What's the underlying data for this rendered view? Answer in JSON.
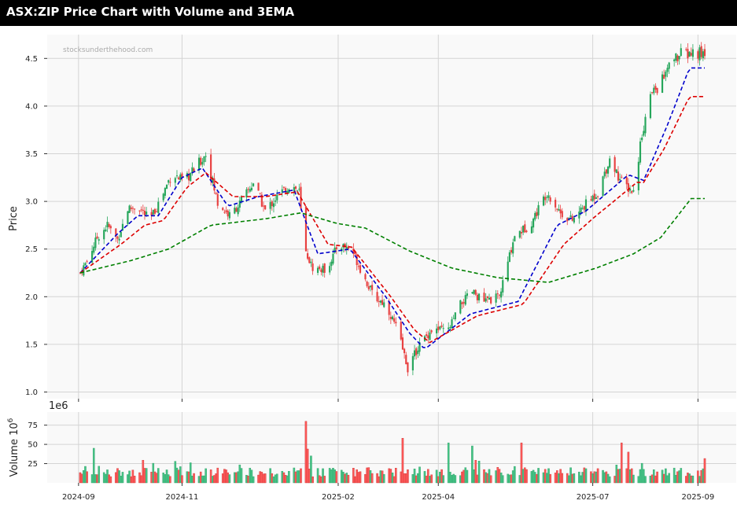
{
  "header": {
    "title": "ASX:ZIP Price Chart with Volume and 3EMA"
  },
  "watermark": "stocksunderthehood.com",
  "chart_data": [
    {
      "type": "candlestick",
      "ylabel": "Price",
      "ylim": [
        0.93,
        4.75
      ],
      "yticks": [
        1.0,
        1.5,
        2.0,
        2.5,
        3.0,
        3.5,
        4.0,
        4.5
      ],
      "ytick_labels": [
        "1.0",
        "1.5",
        "2.0",
        "2.5",
        "3.0",
        "3.5",
        "4.0",
        "4.5"
      ],
      "grid": true,
      "up_color": "#26a65b",
      "down_color": "#e84040",
      "ema_colors": [
        "#0000cc",
        "#dd0000",
        "#008000"
      ],
      "price_keypoints": [
        [
          "2024-09-02",
          2.25
        ],
        [
          "2024-09-06",
          2.38
        ],
        [
          "2024-09-12",
          2.62
        ],
        [
          "2024-09-18",
          2.75
        ],
        [
          "2024-09-24",
          2.6
        ],
        [
          "2024-09-30",
          2.92
        ],
        [
          "2024-10-06",
          2.95
        ],
        [
          "2024-10-13",
          2.8
        ],
        [
          "2024-10-20",
          3.05
        ],
        [
          "2024-10-26",
          3.3
        ],
        [
          "2024-11-02",
          3.2
        ],
        [
          "2024-11-09",
          3.35
        ],
        [
          "2024-11-15",
          3.5
        ],
        [
          "2024-11-22",
          2.98
        ],
        [
          "2024-11-29",
          2.85
        ],
        [
          "2024-12-06",
          3.0
        ],
        [
          "2024-12-13",
          3.2
        ],
        [
          "2024-12-20",
          2.9
        ],
        [
          "2024-12-27",
          3.05
        ],
        [
          "2025-01-04",
          3.18
        ],
        [
          "2025-01-09",
          3.1
        ],
        [
          "2025-01-12",
          2.5
        ],
        [
          "2025-01-17",
          2.3
        ],
        [
          "2025-01-25",
          2.28
        ],
        [
          "2025-02-01",
          2.55
        ],
        [
          "2025-02-09",
          2.5
        ],
        [
          "2025-02-15",
          2.25
        ],
        [
          "2025-02-22",
          2.0
        ],
        [
          "2025-03-01",
          1.92
        ],
        [
          "2025-03-08",
          1.65
        ],
        [
          "2025-03-14",
          1.25
        ],
        [
          "2025-03-21",
          1.5
        ],
        [
          "2025-03-28",
          1.65
        ],
        [
          "2025-04-07",
          1.65
        ],
        [
          "2025-04-14",
          1.92
        ],
        [
          "2025-04-21",
          2.05
        ],
        [
          "2025-04-28",
          1.95
        ],
        [
          "2025-05-07",
          2.0
        ],
        [
          "2025-05-16",
          2.65
        ],
        [
          "2025-05-25",
          2.75
        ],
        [
          "2025-06-04",
          3.1
        ],
        [
          "2025-06-12",
          2.88
        ],
        [
          "2025-06-19",
          2.8
        ],
        [
          "2025-06-26",
          2.95
        ],
        [
          "2025-07-04",
          3.1
        ],
        [
          "2025-07-11",
          3.45
        ],
        [
          "2025-07-18",
          3.2
        ],
        [
          "2025-07-25",
          3.1
        ],
        [
          "2025-07-30",
          3.72
        ],
        [
          "2025-08-04",
          4.1
        ],
        [
          "2025-08-12",
          4.3
        ],
        [
          "2025-08-18",
          4.5
        ],
        [
          "2025-08-25",
          4.55
        ]
      ],
      "ema_short": [
        [
          "2024-09-02",
          2.25
        ],
        [
          "2024-09-24",
          2.66
        ],
        [
          "2024-10-06",
          2.85
        ],
        [
          "2024-10-18",
          2.85
        ],
        [
          "2024-11-01",
          3.25
        ],
        [
          "2024-11-13",
          3.35
        ],
        [
          "2024-11-28",
          2.95
        ],
        [
          "2024-12-16",
          3.05
        ],
        [
          "2025-01-06",
          3.12
        ],
        [
          "2025-01-20",
          2.45
        ],
        [
          "2025-02-08",
          2.5
        ],
        [
          "2025-03-01",
          2.0
        ],
        [
          "2025-03-15",
          1.62
        ],
        [
          "2025-03-24",
          1.45
        ],
        [
          "2025-04-20",
          1.82
        ],
        [
          "2025-05-18",
          1.95
        ],
        [
          "2025-06-10",
          2.75
        ],
        [
          "2025-06-27",
          2.9
        ],
        [
          "2025-07-22",
          3.28
        ],
        [
          "2025-07-31",
          3.22
        ],
        [
          "2025-08-14",
          3.8
        ],
        [
          "2025-08-27",
          4.4
        ]
      ],
      "ema_mid": [
        [
          "2024-09-02",
          2.25
        ],
        [
          "2024-09-26",
          2.55
        ],
        [
          "2024-10-10",
          2.75
        ],
        [
          "2024-10-21",
          2.8
        ],
        [
          "2024-11-04",
          3.15
        ],
        [
          "2024-11-15",
          3.3
        ],
        [
          "2024-12-01",
          3.05
        ],
        [
          "2024-12-20",
          3.05
        ],
        [
          "2025-01-08",
          3.1
        ],
        [
          "2025-01-26",
          2.55
        ],
        [
          "2025-02-09",
          2.52
        ],
        [
          "2025-03-04",
          2.0
        ],
        [
          "2025-03-18",
          1.65
        ],
        [
          "2025-03-27",
          1.52
        ],
        [
          "2025-04-24",
          1.8
        ],
        [
          "2025-05-21",
          1.92
        ],
        [
          "2025-06-14",
          2.55
        ],
        [
          "2025-07-01",
          2.82
        ],
        [
          "2025-07-27",
          3.2
        ],
        [
          "2025-07-31",
          3.2
        ],
        [
          "2025-08-12",
          3.55
        ],
        [
          "2025-08-27",
          4.1
        ]
      ],
      "ema_long": [
        [
          "2024-09-02",
          2.25
        ],
        [
          "2024-10-02",
          2.38
        ],
        [
          "2024-10-24",
          2.5
        ],
        [
          "2024-11-18",
          2.75
        ],
        [
          "2024-12-21",
          2.82
        ],
        [
          "2025-01-10",
          2.88
        ],
        [
          "2025-01-31",
          2.77
        ],
        [
          "2025-02-17",
          2.72
        ],
        [
          "2025-03-15",
          2.48
        ],
        [
          "2025-04-09",
          2.3
        ],
        [
          "2025-05-06",
          2.2
        ],
        [
          "2025-06-05",
          2.15
        ],
        [
          "2025-07-03",
          2.3
        ],
        [
          "2025-07-25",
          2.45
        ],
        [
          "2025-08-10",
          2.62
        ],
        [
          "2025-08-28",
          3.03
        ]
      ]
    },
    {
      "type": "bar",
      "ylabel": "Volume",
      "offset_label": "1e6",
      "ylabel_exponent": "10",
      "ylabel_superscript": "6",
      "ylim": [
        0,
        92
      ],
      "yticks": [
        25,
        50,
        75
      ],
      "ytick_labels": [
        "25",
        "50",
        "75"
      ],
      "grid": true,
      "volume_spikes": [
        [
          "2024-09-10",
          45
        ],
        [
          "2024-10-28",
          28
        ],
        [
          "2024-11-23",
          35
        ],
        [
          "2025-01-13",
          80
        ],
        [
          "2025-01-14",
          44
        ],
        [
          "2025-01-16",
          35
        ],
        [
          "2025-02-15",
          36
        ],
        [
          "2025-03-11",
          58
        ],
        [
          "2025-04-07",
          52
        ],
        [
          "2025-04-21",
          48
        ],
        [
          "2025-05-20",
          52
        ],
        [
          "2025-07-18",
          52
        ],
        [
          "2025-07-22",
          40
        ]
      ]
    }
  ],
  "x_axis": {
    "start": "2024-09-01",
    "end": "2025-09-30",
    "ticks": [
      {
        "date": "2024-09-01",
        "label": "2024-09"
      },
      {
        "date": "2024-11-01",
        "label": "2024-11"
      },
      {
        "date": "2025-02-01",
        "label": "2025-02"
      },
      {
        "date": "2025-04-01",
        "label": "2025-04"
      },
      {
        "date": "2025-07-01",
        "label": "2025-07"
      },
      {
        "date": "2025-09-01",
        "label": "2025-09"
      }
    ]
  }
}
